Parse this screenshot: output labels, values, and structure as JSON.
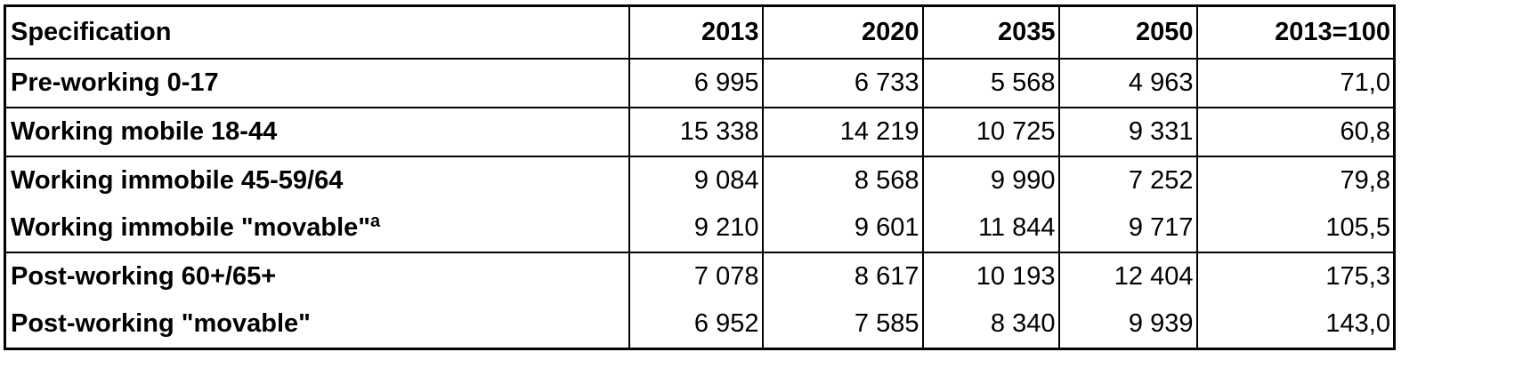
{
  "table": {
    "header": [
      "Specification",
      "2013",
      "2020",
      "2035",
      "2050",
      "2013=100"
    ],
    "rows": [
      [
        "Pre-working 0-17",
        "6 995",
        "6 733",
        "5 568",
        "4 963",
        "71,0"
      ],
      [
        "Working mobile 18-44",
        "15 338",
        "14 219",
        "10 725",
        "9 331",
        "60,8"
      ],
      [
        "Working immobile 45-59/64",
        "9 084",
        "8 568",
        "9 990",
        "7 252",
        "79,8"
      ],
      [
        {
          "text": "Working immobile \"movable\"",
          "sup": "a"
        },
        "9 210",
        "9 601",
        "11 844",
        "9 717",
        "105,5"
      ],
      [
        "Post-working 60+/65+",
        "7 078",
        "8 617",
        "10 193",
        "12 404",
        "175,3"
      ],
      [
        "Post-working \"movable\"",
        "6 952",
        "7 585",
        "8 340",
        "9 939",
        "143,0"
      ]
    ]
  }
}
